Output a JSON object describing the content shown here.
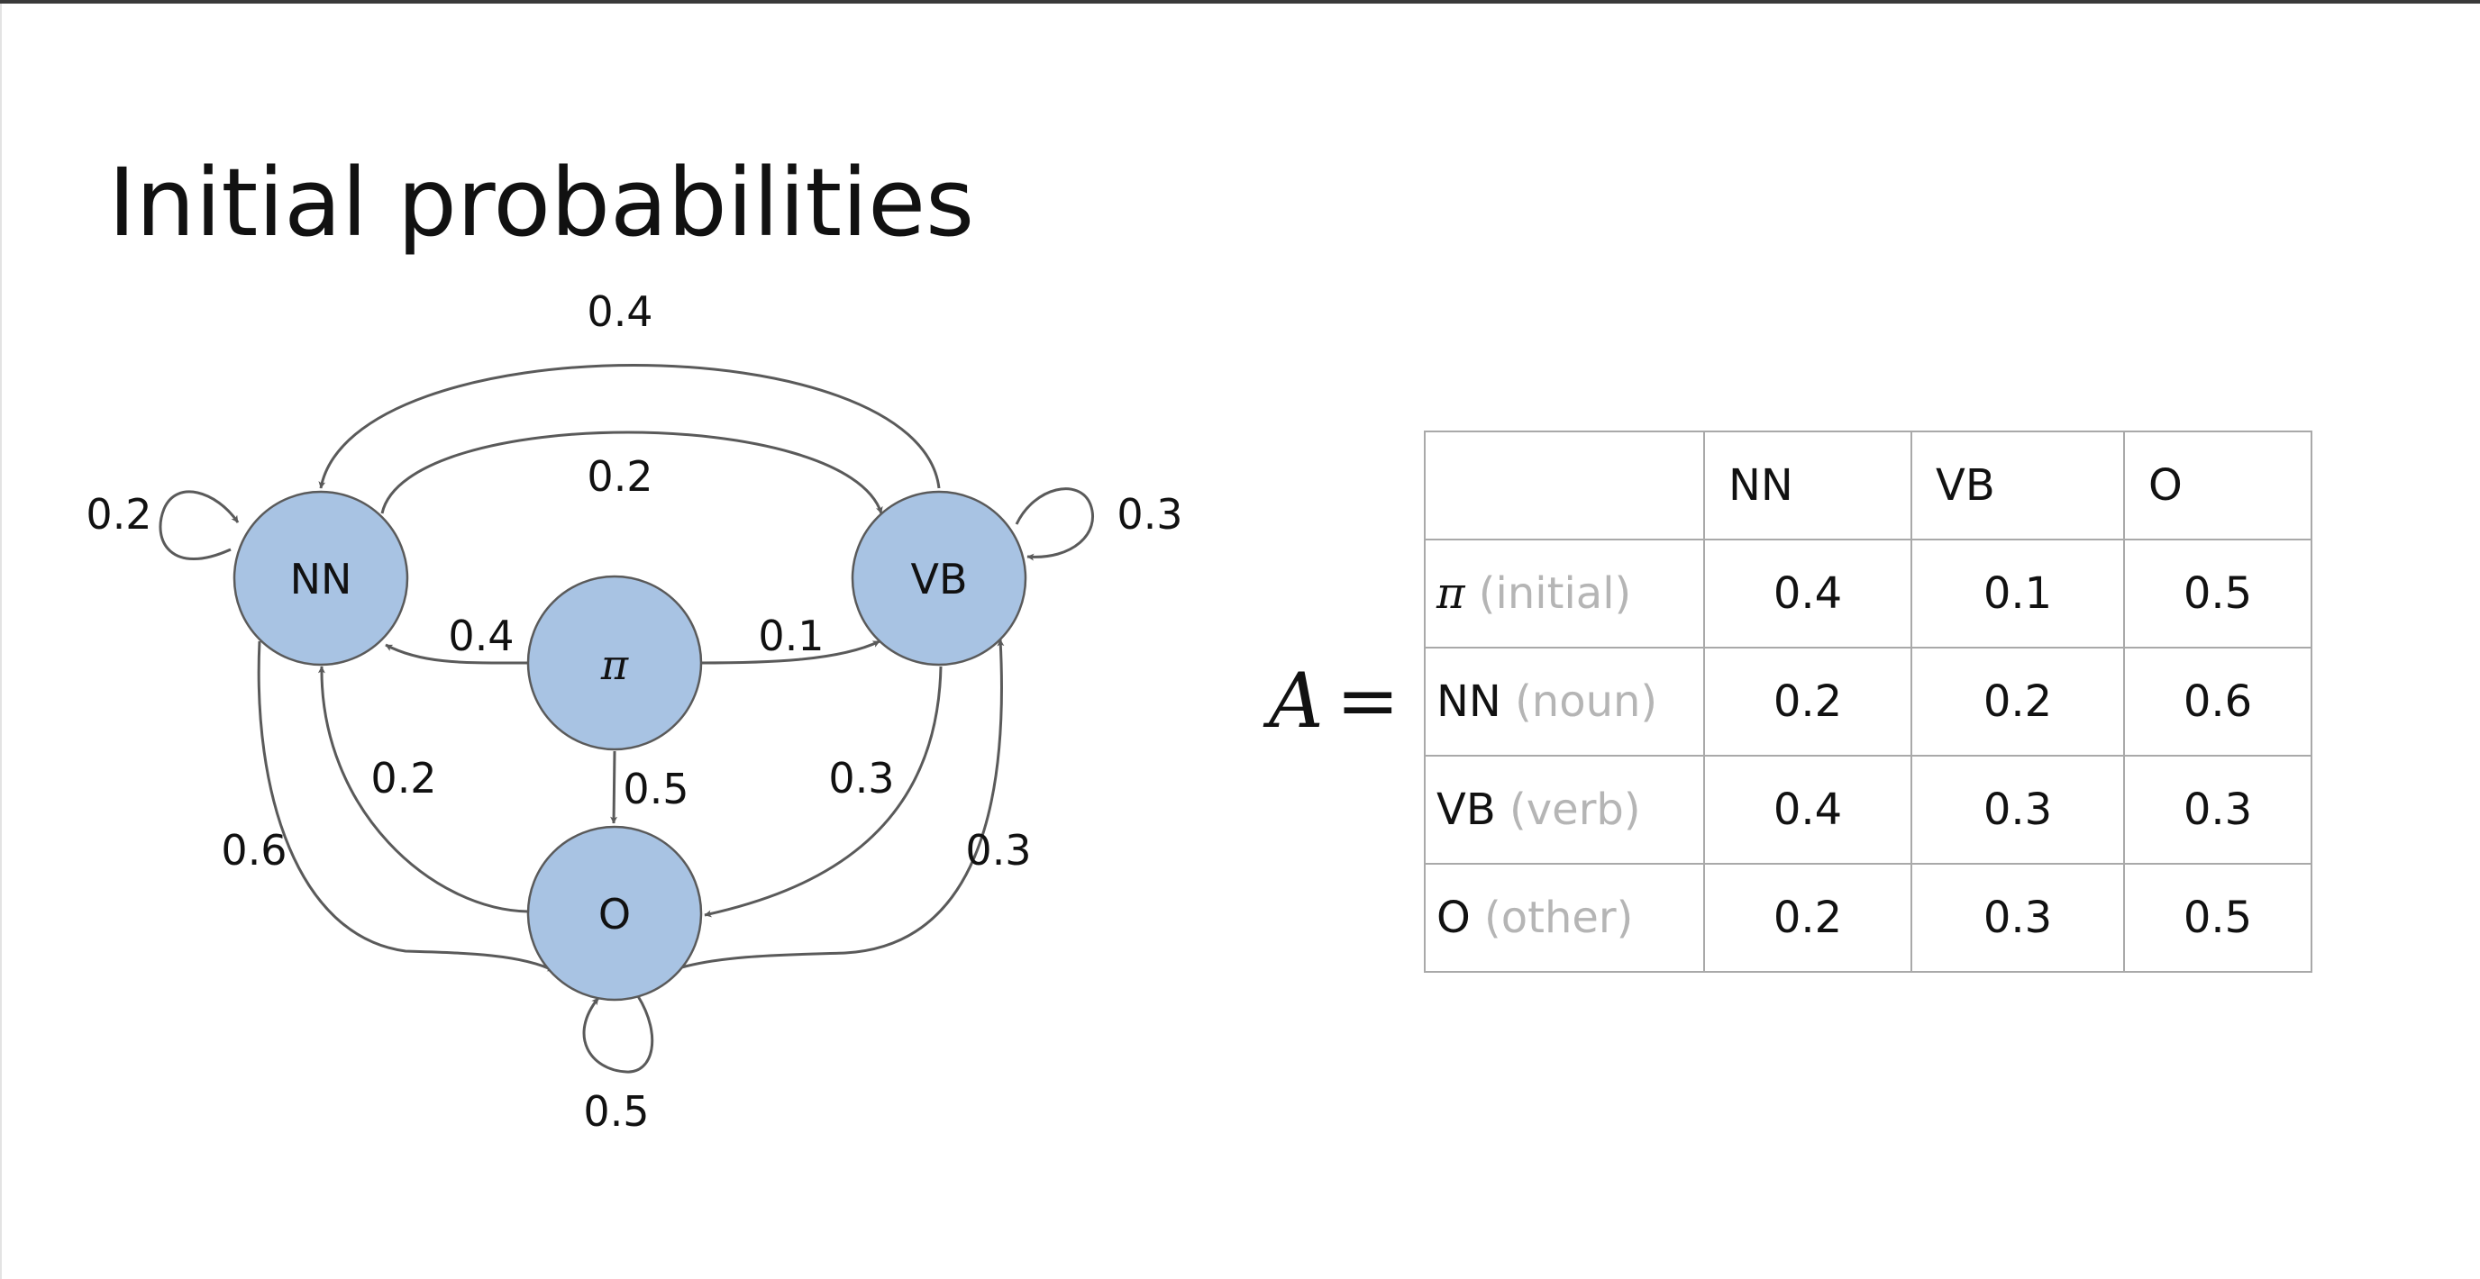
{
  "slide": {
    "title": "Initial probabilities"
  },
  "diagram": {
    "nodes": {
      "nn": "NN",
      "vb": "VB",
      "pi": "π",
      "o": "O"
    },
    "edges": [
      {
        "from": "NN",
        "to": "NN",
        "label": "0.2"
      },
      {
        "from": "VB",
        "to": "NN",
        "label": "0.4"
      },
      {
        "from": "NN",
        "to": "VB",
        "label": "0.2"
      },
      {
        "from": "VB",
        "to": "VB",
        "label": "0.3"
      },
      {
        "from": "π",
        "to": "NN",
        "label": "0.4"
      },
      {
        "from": "π",
        "to": "VB",
        "label": "0.1"
      },
      {
        "from": "π",
        "to": "O",
        "label": "0.5"
      },
      {
        "from": "O",
        "to": "NN",
        "label": "0.2"
      },
      {
        "from": "VB",
        "to": "O",
        "label": "0.3"
      },
      {
        "from": "NN",
        "to": "O",
        "label": "0.6"
      },
      {
        "from": "O",
        "to": "VB",
        "label": "0.3"
      },
      {
        "from": "O",
        "to": "O",
        "label": "0.5"
      }
    ]
  },
  "matrix": {
    "symbol": "A",
    "equals": "=",
    "columns": [
      "NN",
      "VB",
      "O"
    ],
    "rows": [
      {
        "tag": "π",
        "desc": " (initial)",
        "values": [
          "0.4",
          "0.1",
          "0.5"
        ]
      },
      {
        "tag": "NN",
        "desc": " (noun)",
        "values": [
          "0.2",
          "0.2",
          "0.6"
        ]
      },
      {
        "tag": "VB",
        "desc": " (verb)",
        "values": [
          "0.4",
          "0.3",
          "0.3"
        ]
      },
      {
        "tag": "O",
        "desc": " (other)",
        "values": [
          "0.2",
          "0.3",
          "0.5"
        ]
      }
    ]
  },
  "colors": {
    "node_fill": "#a8c3e3",
    "edge": "#5a5a5a",
    "table_border": "#a9a9a9",
    "muted_text": "#b5b5b5"
  }
}
